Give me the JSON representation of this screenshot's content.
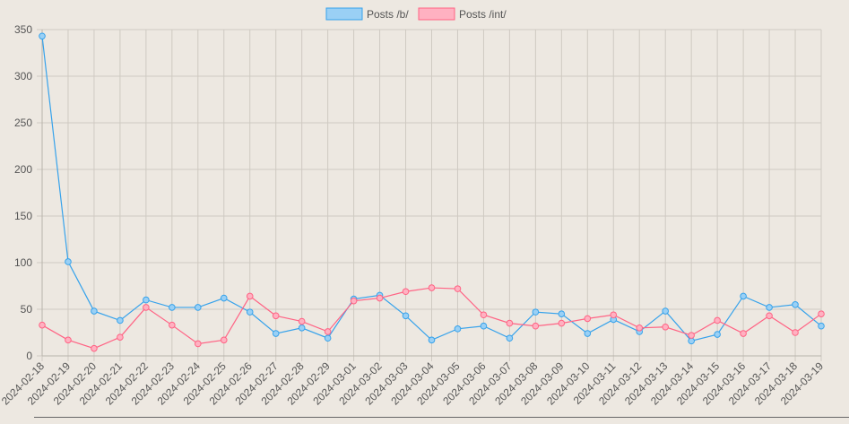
{
  "chart_data": {
    "type": "line",
    "x": [
      "2024-02-18",
      "2024-02-19",
      "2024-02-20",
      "2024-02-21",
      "2024-02-22",
      "2024-02-23",
      "2024-02-24",
      "2024-02-25",
      "2024-02-26",
      "2024-02-27",
      "2024-02-28",
      "2024-02-29",
      "2024-03-01",
      "2024-03-02",
      "2024-03-03",
      "2024-03-04",
      "2024-03-05",
      "2024-03-06",
      "2024-03-07",
      "2024-03-08",
      "2024-03-09",
      "2024-03-10",
      "2024-03-11",
      "2024-03-12",
      "2024-03-13",
      "2024-03-14",
      "2024-03-15",
      "2024-03-16",
      "2024-03-17",
      "2024-03-18",
      "2024-03-19"
    ],
    "series": [
      {
        "name": "Posts /b/",
        "color": "#36a2eb",
        "fill": "#9ad0f5",
        "values": [
          343,
          101,
          48,
          38,
          60,
          52,
          52,
          62,
          47,
          24,
          30,
          19,
          61,
          65,
          43,
          17,
          29,
          32,
          19,
          47,
          45,
          24,
          39,
          26,
          48,
          16,
          23,
          64,
          52,
          55,
          32
        ]
      },
      {
        "name": "Posts /int/",
        "color": "#ff6384",
        "fill": "#ffb1c1",
        "values": [
          33,
          17,
          8,
          20,
          52,
          33,
          13,
          17,
          64,
          43,
          37,
          26,
          59,
          62,
          69,
          73,
          72,
          44,
          35,
          32,
          35,
          40,
          44,
          30,
          31,
          22,
          38,
          24,
          43,
          25,
          45
        ]
      }
    ],
    "ylim": [
      0,
      350
    ],
    "yticks": [
      0,
      50,
      100,
      150,
      200,
      250,
      300,
      350
    ],
    "grid": true,
    "legend_position": "top"
  }
}
